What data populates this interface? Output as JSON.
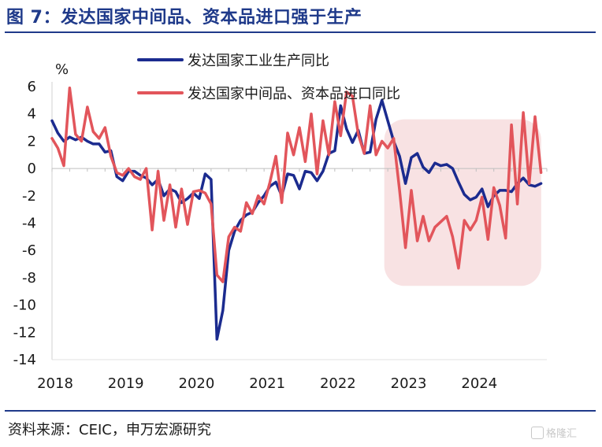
{
  "header": {
    "title": "图 7：发达国家中间品、资本品进口强于生产"
  },
  "footer": {
    "source": "资料来源：CEIC，申万宏源研究"
  },
  "watermark": {
    "text": "格隆汇"
  },
  "colors": {
    "title": "#1f3a8a",
    "series1": "#1b2b8f",
    "series2": "#e2555b",
    "highlight": "#f8e2e3"
  },
  "chart_data": {
    "type": "line",
    "title": "",
    "ylabel": "%",
    "xlabel": "",
    "ylim": [
      -14,
      6
    ],
    "yticks": [
      6,
      4,
      2,
      0,
      -2,
      -4,
      -6,
      -8,
      -10,
      -12,
      -14
    ],
    "xlim": [
      2018.0,
      2025.0
    ],
    "xticks": [
      2018,
      2019,
      2020,
      2021,
      2022,
      2023,
      2024
    ],
    "xtick_labels": [
      "2018",
      "2019",
      "2020",
      "2021",
      "2022",
      "2023",
      "2024"
    ],
    "legend_position": "top-center",
    "highlight_region": {
      "x_range": [
        2022.7,
        2024.92
      ],
      "y_range": [
        -8.6,
        3.6
      ]
    },
    "series": [
      {
        "name": "发达国家工业生产同比",
        "color": "#1b2b8f",
        "x": [
          2018.0,
          2018.083,
          2018.167,
          2018.25,
          2018.333,
          2018.417,
          2018.5,
          2018.583,
          2018.667,
          2018.75,
          2018.833,
          2018.917,
          2019.0,
          2019.083,
          2019.167,
          2019.25,
          2019.333,
          2019.417,
          2019.5,
          2019.583,
          2019.667,
          2019.75,
          2019.833,
          2019.917,
          2020.0,
          2020.083,
          2020.167,
          2020.25,
          2020.333,
          2020.417,
          2020.5,
          2020.583,
          2020.667,
          2020.75,
          2020.833,
          2020.917,
          2021.0,
          2021.083,
          2021.167,
          2021.25,
          2021.333,
          2021.417,
          2021.5,
          2021.583,
          2021.667,
          2021.75,
          2021.833,
          2021.917,
          2022.0,
          2022.083,
          2022.167,
          2022.25,
          2022.333,
          2022.417,
          2022.5,
          2022.583,
          2022.667,
          2022.75,
          2022.833,
          2022.917,
          2023.0,
          2023.083,
          2023.167,
          2023.25,
          2023.333,
          2023.417,
          2023.5,
          2023.583,
          2023.667,
          2023.75,
          2023.833,
          2023.917,
          2024.0,
          2024.083,
          2024.167,
          2024.25,
          2024.333,
          2024.417,
          2024.5,
          2024.583,
          2024.667,
          2024.75,
          2024.833,
          2024.917
        ],
        "values": [
          3.5,
          2.6,
          2.0,
          2.3,
          2.1,
          2.3,
          2.0,
          1.8,
          1.8,
          1.2,
          1.3,
          -0.6,
          -0.9,
          -0.2,
          -0.2,
          -0.5,
          -0.7,
          -1.2,
          -0.8,
          -2.0,
          -1.5,
          -1.7,
          -2.5,
          -2.2,
          -1.8,
          -2.2,
          -0.4,
          -0.8,
          -12.5,
          -10.4,
          -6.0,
          -4.6,
          -3.8,
          -3.4,
          -3.2,
          -2.5,
          -2.0,
          -1.3,
          -1.0,
          -2.0,
          -0.4,
          -0.5,
          -1.5,
          -0.2,
          -0.3,
          -0.9,
          -0.2,
          1.1,
          1.3,
          4.6,
          2.9,
          1.9,
          2.8,
          1.1,
          1.2,
          3.6,
          5.0,
          3.5,
          2.0,
          0.9,
          -1.1,
          0.8,
          1.1,
          0.1,
          -0.3,
          0.4,
          0.2,
          0.3,
          0.0,
          -1.0,
          -1.9,
          -2.3,
          -2.1,
          -1.5,
          -2.8,
          -2.0,
          -1.6,
          -1.6,
          -1.7,
          -1.1,
          -0.7,
          -1.2,
          -1.3,
          -1.1
        ]
      },
      {
        "name": "发达国家中间品、资本品进口同比",
        "color": "#e2555b",
        "x": [
          2018.0,
          2018.083,
          2018.167,
          2018.25,
          2018.333,
          2018.417,
          2018.5,
          2018.583,
          2018.667,
          2018.75,
          2018.833,
          2018.917,
          2019.0,
          2019.083,
          2019.167,
          2019.25,
          2019.333,
          2019.417,
          2019.5,
          2019.583,
          2019.667,
          2019.75,
          2019.833,
          2019.917,
          2020.0,
          2020.083,
          2020.167,
          2020.25,
          2020.333,
          2020.417,
          2020.5,
          2020.583,
          2020.667,
          2020.75,
          2020.833,
          2020.917,
          2021.0,
          2021.083,
          2021.167,
          2021.25,
          2021.333,
          2021.417,
          2021.5,
          2021.583,
          2021.667,
          2021.75,
          2021.833,
          2021.917,
          2022.0,
          2022.083,
          2022.167,
          2022.25,
          2022.333,
          2022.417,
          2022.5,
          2022.583,
          2022.667,
          2022.75,
          2022.833,
          2022.917,
          2023.0,
          2023.083,
          2023.167,
          2023.25,
          2023.333,
          2023.417,
          2023.5,
          2023.583,
          2023.667,
          2023.75,
          2023.833,
          2023.917,
          2024.0,
          2024.083,
          2024.167,
          2024.25,
          2024.333,
          2024.417,
          2024.5,
          2024.583,
          2024.667,
          2024.75,
          2024.833,
          2024.917
        ],
        "values": [
          2.2,
          1.5,
          0.2,
          5.9,
          2.5,
          2.0,
          4.5,
          2.7,
          2.2,
          3.0,
          0.9,
          -0.3,
          -0.5,
          0.0,
          -0.6,
          -0.8,
          0.0,
          -4.5,
          -0.2,
          -3.8,
          -1.2,
          -4.3,
          -1.5,
          -4.1,
          -1.7,
          -1.6,
          -1.8,
          -2.6,
          -7.8,
          -8.3,
          -5.0,
          -4.3,
          -4.6,
          -2.5,
          -3.3,
          -2.0,
          -2.6,
          -1.0,
          0.9,
          -2.5,
          2.6,
          1.0,
          3.0,
          0.5,
          4.0,
          -0.4,
          3.5,
          1.0,
          4.9,
          2.4,
          5.6,
          5.3,
          2.5,
          1.1,
          4.6,
          1.0,
          2.0,
          1.5,
          2.2,
          -1.6,
          -5.8,
          -1.6,
          -5.3,
          -3.5,
          -5.3,
          -4.3,
          -3.9,
          -3.5,
          -5.0,
          -7.3,
          -3.8,
          -4.5,
          -3.8,
          -2.1,
          -5.2,
          -1.4,
          -2.7,
          -5.1,
          3.2,
          -2.6,
          4.1,
          -1.1,
          3.8,
          -0.3
        ]
      }
    ]
  }
}
